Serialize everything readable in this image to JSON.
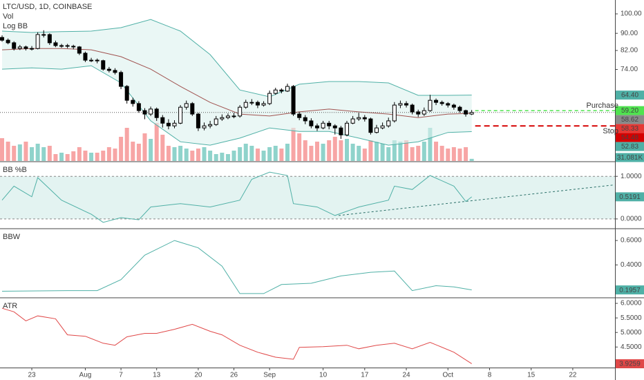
{
  "chart_data": [
    {
      "type": "candlestick",
      "title": "LTC/USD, 1D, COINBASE",
      "indicators": [
        "Vol",
        "Log BB"
      ],
      "log_scale": true,
      "xlim": [
        -5.35,
        98.1
      ],
      "xticks": [
        {
          "value": 0,
          "label": "23"
        },
        {
          "value": 9,
          "label": "Aug"
        },
        {
          "value": 15,
          "label": "7"
        },
        {
          "value": 21,
          "label": "13"
        },
        {
          "value": 28,
          "label": "20"
        },
        {
          "value": 34,
          "label": "26"
        },
        {
          "value": 40,
          "label": "Sep"
        },
        {
          "value": 49,
          "label": "10"
        },
        {
          "value": 56,
          "label": "17"
        },
        {
          "value": 63,
          "label": "24"
        },
        {
          "value": 70,
          "label": "Oct"
        },
        {
          "value": 77,
          "label": "8"
        },
        {
          "value": 84,
          "label": "15"
        },
        {
          "value": 91,
          "label": "22"
        }
      ],
      "ylim": [
        45.06,
        107.8
      ],
      "yticks": [
        {
          "value": 100,
          "label": "100.00"
        },
        {
          "value": 90,
          "label": "90.00"
        },
        {
          "value": 82,
          "label": "82.00"
        },
        {
          "value": 74,
          "label": "74.00"
        }
      ],
      "up_color": "#ffffff",
      "down_color": "#000000",
      "wick_color": "#000000",
      "x": [
        -5,
        -4,
        -3,
        -2,
        -1,
        0,
        1,
        2,
        3,
        4,
        5,
        6,
        7,
        8,
        9,
        10,
        11,
        12,
        13,
        14,
        15,
        16,
        17,
        18,
        19,
        20,
        21,
        22,
        23,
        24,
        25,
        26,
        27,
        28,
        29,
        30,
        31,
        32,
        33,
        34,
        35,
        36,
        37,
        38,
        39,
        40,
        41,
        42,
        43,
        44,
        45,
        46,
        47,
        48,
        49,
        50,
        51,
        52,
        53,
        54,
        55,
        56,
        57,
        58,
        59,
        60,
        61,
        62,
        63,
        64,
        65,
        66,
        67,
        68,
        69,
        70,
        71,
        72,
        73,
        74
      ],
      "open": [
        88.0,
        86.7,
        85.5,
        82.9,
        83.6,
        82.9,
        82.9,
        89.4,
        89.4,
        85.5,
        84.2,
        84.2,
        83.9,
        83.6,
        80.8,
        77.8,
        77.8,
        77.6,
        74.1,
        73.6,
        72.8,
        67.5,
        62.6,
        61.5,
        59.2,
        58.1,
        59.7,
        57.0,
        55.3,
        54.5,
        55.3,
        60.3,
        61.5,
        58.1,
        53.9,
        54.5,
        54.9,
        56.6,
        57.0,
        57.5,
        57.5,
        60.3,
        61.9,
        61.9,
        61.0,
        61.5,
        65.0,
        66.2,
        65.8,
        67.5,
        58.1,
        57.0,
        56.0,
        54.5,
        53.9,
        55.3,
        54.5,
        53.9,
        51.9,
        55.3,
        56.6,
        57.0,
        56.6,
        52.6,
        53.9,
        54.5,
        56.0,
        61.0,
        61.5,
        61.0,
        58.8,
        58.1,
        59.2,
        62.6,
        61.9,
        61.5,
        61.0,
        60.3,
        59.2,
        58.1
      ],
      "high": [
        89.0,
        87.5,
        86.2,
        84.5,
        84.2,
        84.0,
        90.5,
        91.5,
        90.0,
        86.5,
        85.0,
        85.0,
        84.6,
        84.0,
        81.5,
        78.8,
        78.5,
        78.0,
        75.0,
        74.5,
        73.5,
        68.0,
        63.5,
        62.3,
        60.0,
        60.5,
        60.2,
        57.8,
        56.5,
        56.2,
        61.0,
        62.5,
        62.0,
        58.5,
        55.5,
        56.0,
        57.5,
        58.0,
        58.3,
        58.5,
        61.0,
        62.8,
        63.0,
        62.5,
        62.3,
        66.0,
        67.0,
        66.8,
        68.5,
        68.0,
        58.8,
        57.8,
        56.8,
        55.2,
        56.0,
        56.0,
        55.0,
        54.5,
        56.0,
        57.5,
        58.5,
        57.8,
        57.0,
        54.8,
        55.5,
        57.0,
        62.0,
        62.5,
        62.3,
        61.5,
        59.5,
        60.2,
        64.5,
        63.2,
        62.5,
        62.0,
        61.5,
        60.8,
        59.5,
        59.4
      ],
      "low": [
        86.0,
        84.8,
        82.0,
        82.2,
        82.0,
        82.0,
        82.5,
        88.0,
        84.5,
        83.5,
        83.2,
        83.0,
        82.5,
        80.0,
        77.0,
        77.0,
        76.5,
        73.5,
        72.8,
        72.0,
        66.5,
        61.5,
        60.5,
        58.5,
        56.5,
        57.5,
        56.0,
        54.0,
        53.5,
        53.8,
        55.0,
        59.5,
        57.5,
        53.0,
        53.2,
        53.8,
        54.5,
        56.0,
        56.5,
        56.8,
        57.0,
        59.8,
        61.0,
        60.0,
        60.5,
        61.0,
        64.5,
        65.0,
        65.5,
        57.5,
        56.2,
        55.0,
        53.8,
        53.0,
        53.5,
        53.5,
        52.0,
        50.8,
        51.5,
        55.0,
        56.0,
        55.8,
        52.0,
        52.3,
        53.5,
        54.0,
        55.5,
        60.0,
        60.2,
        58.0,
        57.2,
        57.5,
        58.8,
        61.0,
        60.8,
        60.2,
        59.5,
        58.5,
        57.3,
        57.8
      ],
      "close": [
        86.7,
        85.5,
        82.9,
        83.6,
        82.9,
        82.9,
        89.4,
        89.4,
        85.5,
        84.2,
        84.2,
        83.9,
        83.6,
        80.8,
        77.8,
        77.8,
        77.6,
        74.1,
        73.6,
        72.8,
        67.5,
        62.6,
        61.5,
        59.2,
        58.1,
        59.7,
        57.0,
        55.3,
        54.5,
        55.3,
        60.3,
        61.5,
        58.1,
        53.9,
        54.5,
        54.9,
        56.6,
        57.0,
        57.5,
        57.5,
        60.3,
        61.9,
        61.9,
        61.0,
        61.5,
        65.0,
        66.2,
        65.8,
        67.5,
        58.1,
        57.0,
        56.0,
        54.5,
        53.9,
        55.3,
        54.5,
        53.9,
        51.9,
        55.3,
        56.6,
        57.0,
        56.6,
        52.6,
        53.9,
        54.5,
        56.0,
        61.0,
        61.5,
        61.0,
        58.8,
        58.1,
        59.2,
        62.6,
        61.9,
        61.5,
        61.0,
        60.3,
        59.2,
        58.1,
        58.62
      ],
      "volume": {
        "ylim": [
          0,
          560
        ],
        "up_color": "#8fd3cb",
        "down_color": "#f7a5a5",
        "values": [
          330,
          280,
          220,
          240,
          280,
          200,
          250,
          200,
          220,
          100,
          120,
          100,
          140,
          200,
          150,
          120,
          120,
          150,
          200,
          180,
          350,
          480,
          280,
          250,
          400,
          320,
          550,
          380,
          220,
          200,
          220,
          180,
          150,
          180,
          200,
          150,
          100,
          120,
          100,
          150,
          200,
          250,
          220,
          180,
          150,
          200,
          220,
          180,
          250,
          480,
          400,
          300,
          220,
          280,
          250,
          300,
          350,
          300,
          320,
          250,
          220,
          180,
          300,
          280,
          250,
          200,
          300,
          280,
          300,
          200,
          220,
          280,
          480,
          280,
          220,
          180,
          200,
          180,
          200,
          31.081
        ],
        "tag": {
          "value": 31.081,
          "label": "31.081K",
          "color": "#4fb0a6"
        }
      },
      "bollinger": {
        "band_color": "#4fb0a6",
        "middle_color": "#a0524f",
        "fill": "#dcf1ef",
        "x": [
          -5,
          0,
          5,
          10,
          15,
          20,
          25,
          30,
          35,
          40,
          45,
          50,
          55,
          60,
          65,
          70,
          74
        ],
        "upper": [
          91.1,
          90.4,
          90.8,
          91.1,
          92.8,
          97.0,
          91.1,
          80.2,
          66.2,
          63.8,
          68.3,
          69.3,
          69.3,
          68.8,
          64.3,
          64.3,
          64.4
        ],
        "middle": [
          82.3,
          82.9,
          82.9,
          82.3,
          79.3,
          74.1,
          67.5,
          61.9,
          58.1,
          57.5,
          58.8,
          59.7,
          58.8,
          58.1,
          57.0,
          58.1,
          58.33
        ],
        "lower": [
          74.1,
          74.6,
          74.1,
          75.5,
          68.8,
          56.0,
          50.0,
          49.1,
          51.0,
          53.9,
          52.9,
          52.9,
          51.0,
          49.1,
          50.0,
          52.6,
          52.83
        ]
      },
      "price_line": {
        "value": 58.62,
        "color": "#555555"
      },
      "orders": [
        {
          "name": "Purchase",
          "value": 59.2,
          "color": "#4fe34f"
        },
        {
          "name": "Stop",
          "value": 54.48,
          "color": "#d50000"
        }
      ],
      "tags": [
        {
          "value": 64.4,
          "label": "64.40",
          "color": "#4fb0a6"
        },
        {
          "value": 59.2,
          "label": "59.20",
          "color": "#4fe34f"
        },
        {
          "value": 58.62,
          "label": "58.62",
          "color": "#8a8a8a"
        },
        {
          "value": 58.33,
          "label": "58.33",
          "color": "#e53935"
        },
        {
          "value": 54.48,
          "label": "54.48",
          "color": "#d50000"
        },
        {
          "value": 52.83,
          "label": "52.83",
          "color": "#4fb0a6"
        }
      ]
    },
    {
      "type": "line",
      "title": "BB %B",
      "color": "#4fb0a6",
      "ylim": [
        -0.213,
        1.328
      ],
      "yticks": [
        {
          "value": 1,
          "label": "1.0000"
        },
        {
          "value": 0,
          "label": "0.0000"
        }
      ],
      "band": [
        0,
        1
      ],
      "band_fill": "#e3f3f1",
      "x": [
        -5,
        -3,
        0,
        1,
        5,
        10,
        12,
        15,
        18,
        20,
        25,
        30,
        35,
        37,
        40,
        43,
        44,
        48,
        51,
        55,
        60,
        61,
        64,
        67,
        71,
        73,
        74
      ],
      "values": [
        0.44,
        0.77,
        0.52,
        0.97,
        0.44,
        0.11,
        -0.08,
        0.03,
        -0.02,
        0.28,
        0.36,
        0.28,
        0.44,
        0.93,
        1.1,
        1.02,
        0.36,
        0.28,
        0.08,
        0.28,
        0.44,
        0.77,
        0.69,
        1.02,
        0.77,
        0.41,
        0.5191
      ],
      "trendline": {
        "x": [
          51.6,
          98
        ],
        "values": [
          0.08,
          0.8
        ],
        "color": "#2a6f68"
      }
    },
    {
      "type": "line",
      "title": "BBW",
      "color": "#4fb0a6",
      "ylim": [
        0.137,
        0.691
      ],
      "yticks": [
        {
          "value": 0.6,
          "label": "0.6000"
        },
        {
          "value": 0.4,
          "label": "0.4000"
        }
      ],
      "x": [
        -5,
        6,
        11,
        15,
        19,
        24,
        28,
        32,
        35,
        39,
        42,
        47,
        52,
        57,
        61,
        64,
        68,
        71,
        74
      ],
      "values": [
        0.185,
        0.19,
        0.19,
        0.28,
        0.48,
        0.6,
        0.54,
        0.39,
        0.166,
        0.166,
        0.24,
        0.25,
        0.31,
        0.34,
        0.35,
        0.19,
        0.23,
        0.22,
        0.1957
      ]
    },
    {
      "type": "line",
      "title": "ATR",
      "color": "#e04848",
      "ylim": [
        3.794,
        6.168
      ],
      "yticks": [
        {
          "value": 6,
          "label": "6.0000"
        },
        {
          "value": 5.5,
          "label": "5.5000"
        },
        {
          "value": 5,
          "label": "5.0000"
        },
        {
          "value": 4.5,
          "label": "4.5000"
        }
      ],
      "x": [
        -5,
        -3,
        -1,
        1,
        4,
        6,
        9,
        12,
        14,
        16,
        19,
        21,
        24,
        27,
        30,
        32,
        35,
        38,
        41,
        44,
        45,
        49,
        53,
        55,
        58,
        61,
        64,
        67,
        71,
        74
      ],
      "values": [
        5.83,
        5.71,
        5.4,
        5.57,
        5.47,
        4.92,
        4.87,
        4.63,
        4.56,
        4.85,
        4.97,
        4.97,
        5.11,
        5.28,
        5.04,
        4.92,
        4.56,
        4.32,
        4.15,
        4.08,
        4.49,
        4.51,
        4.56,
        4.44,
        4.56,
        4.63,
        4.44,
        4.66,
        4.32,
        3.9259
      ]
    }
  ]
}
